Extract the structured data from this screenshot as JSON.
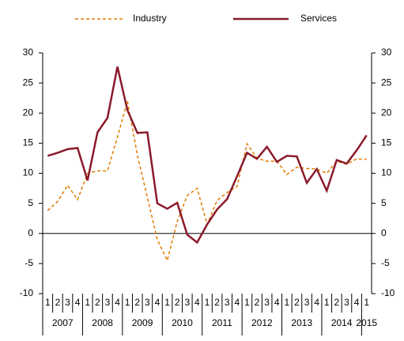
{
  "chart_data": {
    "type": "line",
    "categories": [
      "1",
      "2",
      "3",
      "4",
      "1",
      "2",
      "3",
      "4",
      "1",
      "2",
      "3",
      "4",
      "1",
      "2",
      "3",
      "4",
      "1",
      "2",
      "3",
      "4",
      "1",
      "2",
      "3",
      "4",
      "1",
      "2",
      "3",
      "4",
      "1",
      "2",
      "3",
      "4",
      "1"
    ],
    "years": [
      "2007",
      "2008",
      "2009",
      "2010",
      "2011",
      "2012",
      "2013",
      "2014",
      "2015"
    ],
    "series": [
      {
        "name": "Industry",
        "color": "#e07b00",
        "dashed": true,
        "values": [
          3.8,
          5.3,
          8.0,
          5.6,
          10.0,
          10.4,
          10.4,
          16.0,
          22.0,
          13.0,
          6.0,
          -1.0,
          -4.5,
          2.0,
          6.3,
          7.5,
          1.5,
          5.5,
          6.8,
          7.8,
          14.9,
          12.5,
          12.0,
          12.0,
          9.8,
          11.0,
          10.8,
          10.7,
          10.0,
          12.0,
          11.5,
          12.4,
          12.3
        ]
      },
      {
        "name": "Services",
        "color": "#8b1a2b",
        "dashed": false,
        "values": [
          12.9,
          13.4,
          14.0,
          14.2,
          8.8,
          16.8,
          19.2,
          27.7,
          20.5,
          16.7,
          16.8,
          5.0,
          4.1,
          5.1,
          -0.2,
          -1.5,
          1.5,
          4.0,
          5.7,
          9.5,
          13.4,
          12.4,
          14.4,
          11.9,
          12.9,
          12.8,
          8.4,
          10.7,
          7.1,
          12.2,
          11.6,
          13.8,
          16.3
        ]
      }
    ],
    "ylim": [
      -10,
      30
    ],
    "yticks": [
      -10,
      -5,
      0,
      5,
      10,
      15,
      20,
      25,
      30
    ],
    "y2lim": [
      -10,
      30
    ],
    "y2ticks": [
      -10,
      -5,
      0,
      5,
      10,
      15,
      20,
      25,
      30
    ],
    "legend": "top"
  }
}
